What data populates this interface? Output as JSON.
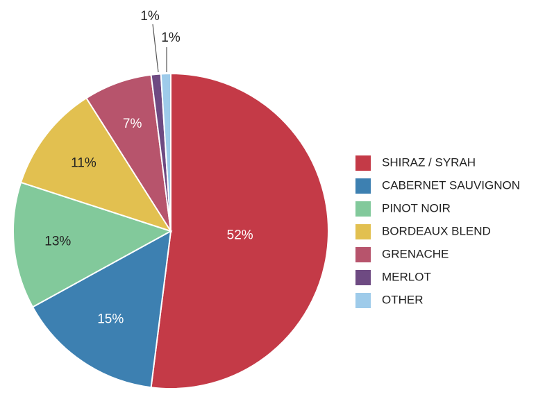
{
  "chart_data": {
    "type": "pie",
    "title": "",
    "slices": [
      {
        "label": "SHIRAZ / SYRAH",
        "value": 52,
        "display": "52%",
        "color": "#C43A47",
        "label_color": "#ffffff"
      },
      {
        "label": "CABERNET SAUVIGNON",
        "value": 15,
        "display": "15%",
        "color": "#3D80B1",
        "label_color": "#ffffff"
      },
      {
        "label": "PINOT NOIR",
        "value": 13,
        "display": "13%",
        "color": "#82C99B",
        "label_color": "#222222"
      },
      {
        "label": "BORDEAUX BLEND",
        "value": 11,
        "display": "11%",
        "color": "#E2C050",
        "label_color": "#222222"
      },
      {
        "label": "GRENACHE",
        "value": 7,
        "display": "7%",
        "color": "#B7546C",
        "label_color": "#ffffff"
      },
      {
        "label": "MERLOT",
        "value": 1,
        "display": "1%",
        "color": "#6E4A82",
        "label_color": "#222222"
      },
      {
        "label": "OTHER",
        "value": 1,
        "display": "1%",
        "color": "#9ECBEA",
        "label_color": "#222222"
      }
    ],
    "legend_position": "right"
  }
}
